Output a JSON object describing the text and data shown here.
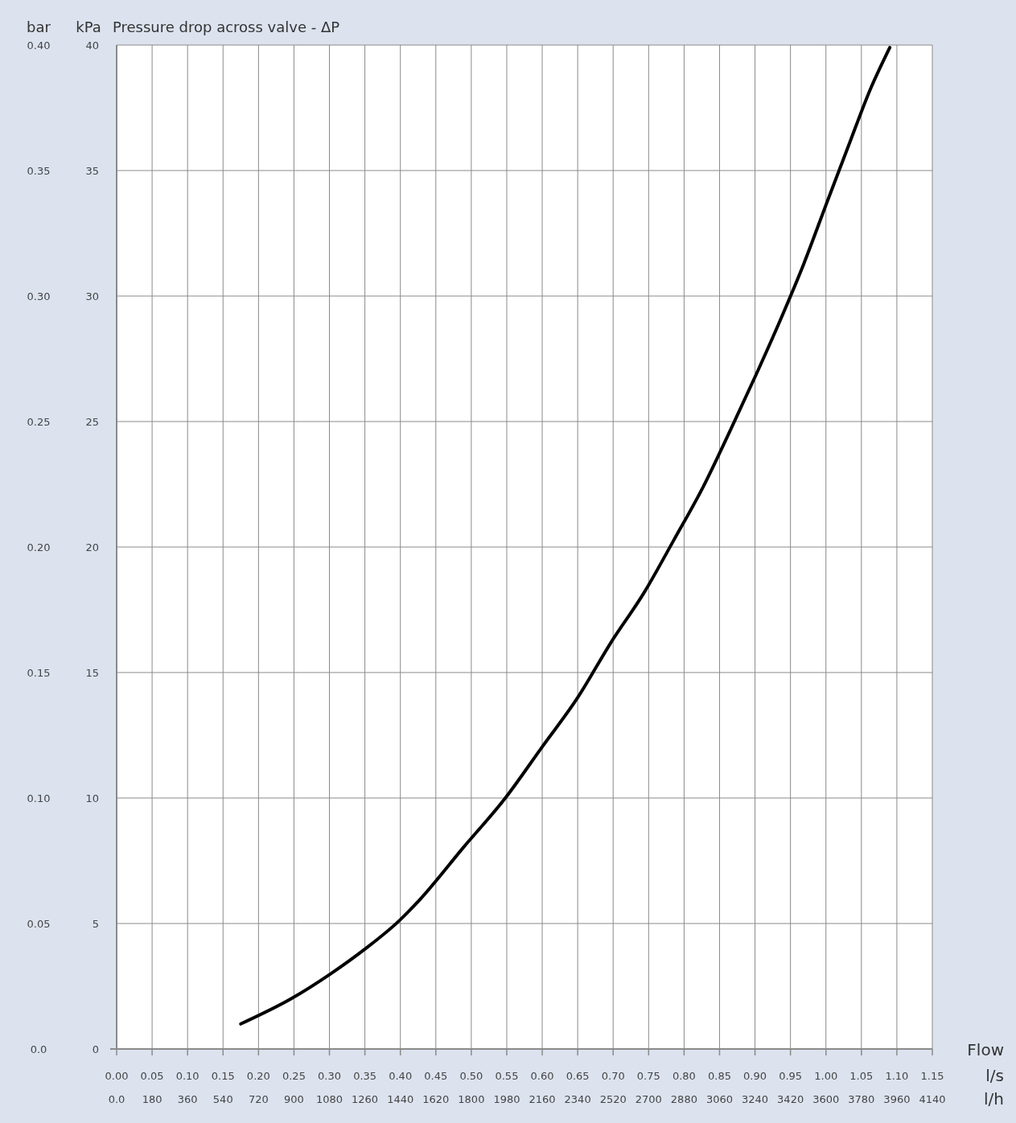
{
  "chart_data": {
    "type": "line",
    "title": "Pressure drop across valve - ΔP",
    "xlabel": "l/s",
    "x2label": "l/h",
    "ylabel": "kPa",
    "y2label": "bar",
    "annotations": [
      "Flow"
    ],
    "x": [
      0.175,
      0.246,
      0.302,
      0.351,
      0.398,
      0.429,
      0.488,
      0.548,
      0.599,
      0.65,
      0.697,
      0.744,
      0.786,
      0.827,
      0.866,
      0.902,
      0.935,
      0.969,
      1.001,
      1.032,
      1.062,
      1.09
    ],
    "series": [
      {
        "color": "#000000",
        "values": [
          1.0,
          2.0,
          3.0,
          4.0,
          5.1,
          6.0,
          8.0,
          10.0,
          12.0,
          14.0,
          16.2,
          18.2,
          20.3,
          22.4,
          24.7,
          26.9,
          29.0,
          31.3,
          33.7,
          36.0,
          38.2,
          39.9
        ]
      }
    ],
    "xlim": [
      0,
      1.15
    ],
    "xticks": [
      {
        "value": 0,
        "label": "0.00"
      },
      {
        "value": 0.05,
        "label": "0.05"
      },
      {
        "value": 0.1,
        "label": "0.10"
      },
      {
        "value": 0.15,
        "label": "0.15"
      },
      {
        "value": 0.2,
        "label": "0.20"
      },
      {
        "value": 0.25,
        "label": "0.25"
      },
      {
        "value": 0.3,
        "label": "0.30"
      },
      {
        "value": 0.35,
        "label": "0.35"
      },
      {
        "value": 0.4,
        "label": "0.40"
      },
      {
        "value": 0.45,
        "label": "0.45"
      },
      {
        "value": 0.5,
        "label": "0.50"
      },
      {
        "value": 0.55,
        "label": "0.55"
      },
      {
        "value": 0.6,
        "label": "0.60"
      },
      {
        "value": 0.65,
        "label": "0.65"
      },
      {
        "value": 0.7,
        "label": "0.70"
      },
      {
        "value": 0.75,
        "label": "0.75"
      },
      {
        "value": 0.8,
        "label": "0.80"
      },
      {
        "value": 0.85,
        "label": "0.85"
      },
      {
        "value": 0.9,
        "label": "0.90"
      },
      {
        "value": 0.95,
        "label": "0.95"
      },
      {
        "value": 1,
        "label": "1.00"
      },
      {
        "value": 1.05,
        "label": "1.05"
      },
      {
        "value": 1.1,
        "label": "1.10"
      },
      {
        "value": 1.15,
        "label": "1.15"
      }
    ],
    "x2lim": [
      0,
      4140
    ],
    "x2ticks": [
      {
        "value": 0,
        "label": "0.0"
      },
      180,
      360,
      540,
      720,
      900,
      1080,
      1260,
      1440,
      1620,
      1800,
      1980,
      2160,
      2340,
      2520,
      2700,
      2880,
      3060,
      3240,
      3420,
      3600,
      3780,
      3960,
      4140
    ],
    "ylim": [
      0,
      40
    ],
    "yticks": [
      0,
      5,
      10,
      15,
      20,
      25,
      30,
      35,
      40
    ],
    "y2lim": [
      0,
      0.4
    ],
    "y2ticks": [
      {
        "value": 0,
        "label": "0.0"
      },
      0.05,
      {
        "value": 0.1,
        "label": "0.10"
      },
      0.15,
      {
        "value": 0.2,
        "label": "0.20"
      },
      0.25,
      {
        "value": 0.3,
        "label": "0.30"
      },
      0.35,
      {
        "value": 0.4,
        "label": "0.40"
      }
    ],
    "grid": true,
    "marker": "none",
    "line_style": "solid"
  }
}
